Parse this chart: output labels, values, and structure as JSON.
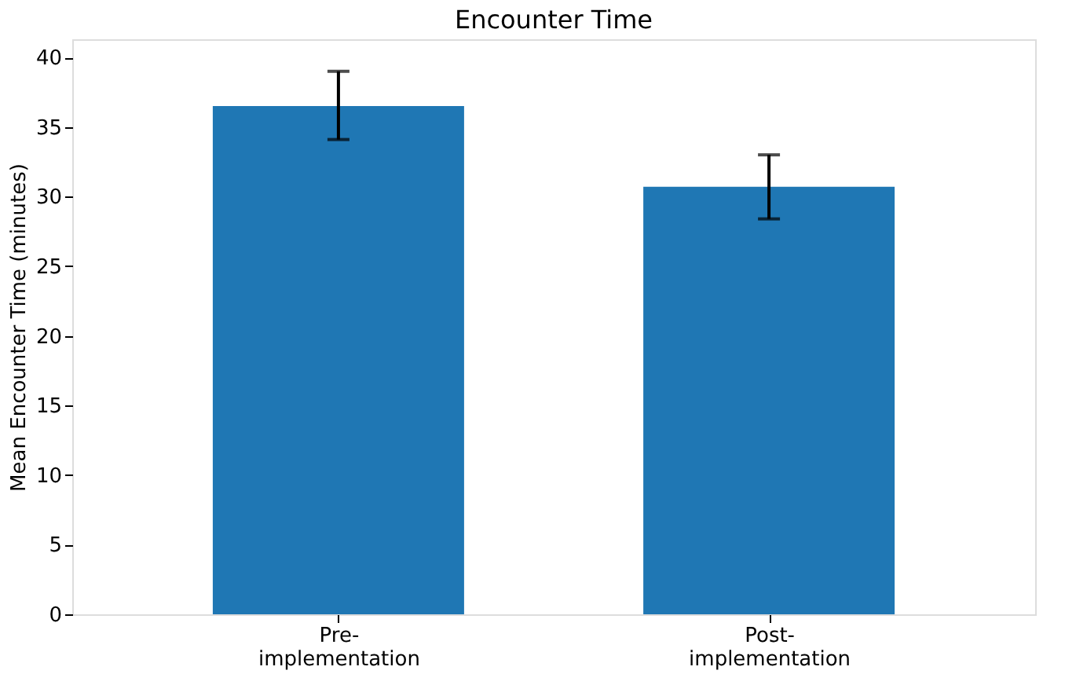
{
  "chart_data": {
    "type": "bar",
    "title": "Encounter Time",
    "ylabel": "Mean Encounter Time (minutes)",
    "categories": [
      "Pre-\nimplementation",
      "Post-\nimplementation"
    ],
    "values": [
      36.5,
      30.7
    ],
    "color": "#1f77b4",
    "errors": [
      [
        34.1,
        39.0
      ],
      [
        28.4,
        33.0
      ]
    ],
    "ylim": [
      0,
      41.3
    ],
    "yticks": [
      0,
      5,
      10,
      15,
      20,
      25,
      30,
      35,
      40
    ],
    "grid": false
  }
}
